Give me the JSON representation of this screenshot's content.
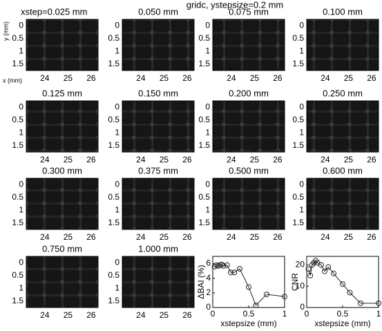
{
  "figure": {
    "title": "gridc, ystepsize=0.2 mm",
    "y_label": "y (mm)",
    "x_label": "x (mm)",
    "image_ylim": [
      -0.25,
      1.75
    ],
    "image_yticks": [
      0,
      0.5,
      1,
      1.5
    ],
    "image_xlim": [
      23.2,
      26.3
    ],
    "image_xticks": [
      24,
      25,
      26
    ],
    "panels": [
      "xstep=0.025 mm",
      "0.050 mm",
      "0.075 mm",
      "0.100 mm",
      "0.125 mm",
      "0.150 mm",
      "0.200 mm",
      "0.250 mm",
      "0.300 mm",
      "0.375 mm",
      "0.500 mm",
      "0.600 mm",
      "0.750 mm",
      "1.000 mm"
    ]
  },
  "chart_data": [
    {
      "type": "line",
      "y_label": "ΔBAI (%)",
      "x_label": "xstepsize (mm)",
      "x": [
        0.025,
        0.05,
        0.075,
        0.1,
        0.125,
        0.15,
        0.2,
        0.25,
        0.3,
        0.375,
        0.5,
        0.6,
        0.75,
        1.0
      ],
      "values": [
        5.6,
        5.8,
        5.7,
        5.8,
        5.9,
        5.7,
        5.8,
        4.8,
        4.8,
        5.3,
        2.8,
        0.3,
        1.8,
        1.5
      ],
      "xlim": [
        0,
        1
      ],
      "xticks": [
        0,
        0.5,
        1
      ],
      "ylim": [
        0,
        7
      ],
      "yticks": [
        0,
        2,
        4,
        6
      ],
      "color": "#222222"
    },
    {
      "type": "line",
      "y_label": "CNR",
      "x_label": "xstepsize (mm)",
      "x": [
        0.025,
        0.05,
        0.075,
        0.1,
        0.125,
        0.15,
        0.2,
        0.25,
        0.3,
        0.375,
        0.5,
        0.6,
        0.75,
        1.0
      ],
      "values": [
        18,
        15,
        20,
        21,
        22,
        21,
        20,
        17,
        19,
        16,
        11,
        7,
        2,
        2
      ],
      "xlim": [
        0,
        1
      ],
      "xticks": [
        0,
        0.5,
        1
      ],
      "ylim": [
        0,
        24
      ],
      "yticks": [
        0,
        10,
        20
      ],
      "color": "#222222"
    }
  ]
}
